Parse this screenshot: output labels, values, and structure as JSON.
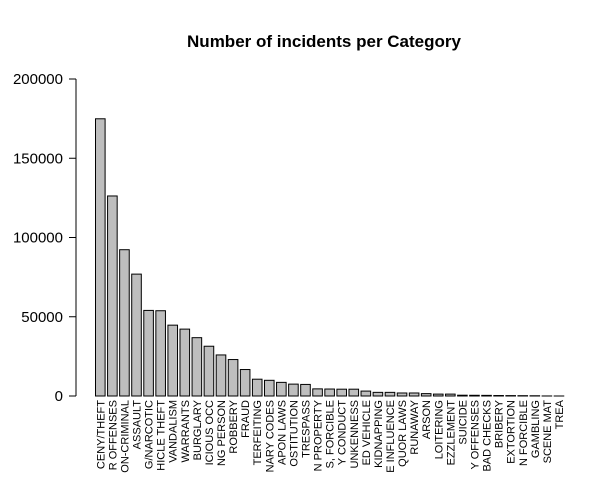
{
  "chart_data": {
    "type": "bar",
    "title": "Number of incidents per Category",
    "xlabel": "",
    "ylabel": "",
    "ylim": [
      0,
      200000
    ],
    "yticks": [
      0,
      50000,
      100000,
      150000,
      200000
    ],
    "yticklabels": [
      "0",
      "50000",
      "100000",
      "150000",
      "200000"
    ],
    "bar_color": "#bebebe",
    "categories": [
      "CENY/THEFT",
      "R OFFENSES",
      "ON-CRIMINAL",
      "ASSAULT",
      "G/NARCOTIC",
      "HICLE THEFT",
      "VANDALISM",
      "WARRANTS",
      "BURGLARY",
      "ICIOUS OCC",
      "NG PERSON",
      "ROBBERY",
      "FRAUD",
      "TERFEITING",
      "NARY CODES",
      "APON LAWS",
      "OSTITUTION",
      "TRESPASS",
      "N PROPERTY",
      "S, FORCIBLE",
      "Y CONDUCT",
      "UNKENNESS",
      "ED VEHICLE",
      "KIDNAPPING",
      "E INFLUENCE",
      "QUOR LAWS",
      "RUNAWAY",
      "ARSON",
      "LOITERING",
      "EZZLEMENT",
      "SUICIDE",
      "Y OFFENSES",
      "BAD CHECKS",
      "BRIBERY",
      "EXTORTION",
      "N FORCIBLE",
      "GAMBLING",
      "SCENE MAT",
      "TREA"
    ],
    "values": [
      174900,
      126200,
      92300,
      76900,
      54000,
      53800,
      44700,
      42200,
      36800,
      31400,
      25900,
      23000,
      16700,
      10600,
      9900,
      8600,
      7500,
      7300,
      4500,
      4400,
      4300,
      4300,
      3100,
      2300,
      2300,
      1900,
      1900,
      1500,
      1200,
      1200,
      500,
      450,
      400,
      300,
      250,
      200,
      150,
      22,
      6
    ]
  }
}
